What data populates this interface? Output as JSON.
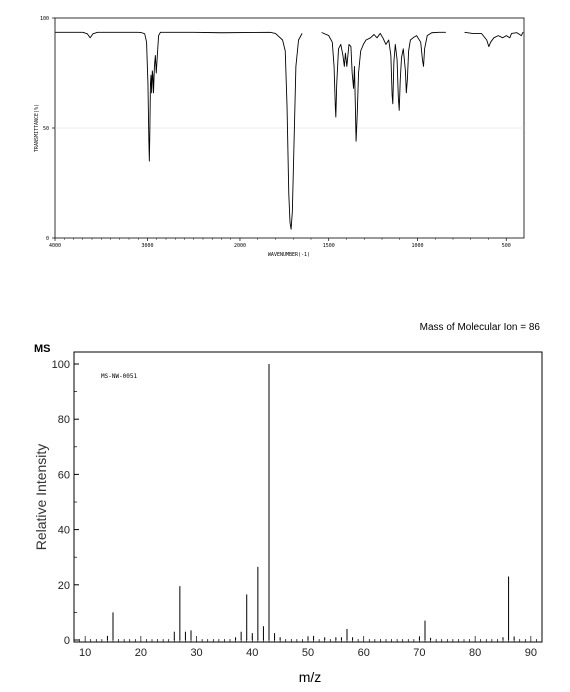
{
  "chart_data": [
    {
      "type": "line",
      "title": "",
      "xlabel": "WAVENUMBER(-1)",
      "ylabel": "TRANSMITTANCE(%)",
      "xlim": [
        4000,
        400
      ],
      "ylim": [
        0,
        100
      ],
      "x_ticks": [
        4000,
        3000,
        2000,
        1500,
        1000,
        500
      ],
      "x_tick_labels": [
        "4000",
        "3000",
        "2000",
        "1500",
        "1000",
        "500"
      ],
      "y_ticks": [
        0,
        50,
        100
      ],
      "y_tick_labels": [
        "0",
        "50",
        "100"
      ],
      "series": [
        {
          "segments": [
            [
              [
                3996,
                93.5
              ],
              [
                3700,
                93.5
              ],
              [
                3650,
                92.8
              ],
              [
                3620,
                91
              ],
              [
                3590,
                92.8
              ],
              [
                3540,
                93.5
              ],
              [
                3100,
                93.5
              ],
              [
                3060,
                93.3
              ],
              [
                3030,
                92.8
              ],
              [
                3010,
                89
              ],
              [
                2995,
                70
              ],
              [
                2985,
                44
              ],
              [
                2980,
                35
              ],
              [
                2975,
                47
              ],
              [
                2968,
                70
              ],
              [
                2962,
                74
              ],
              [
                2955,
                66
              ],
              [
                2948,
                76
              ],
              [
                2942,
                74
              ],
              [
                2935,
                66
              ],
              [
                2925,
                78
              ],
              [
                2915,
                83
              ],
              [
                2905,
                75
              ],
              [
                2895,
                82
              ],
              [
                2880,
                92
              ],
              [
                2860,
                93.5
              ],
              [
                2500,
                93.5
              ],
              [
                2200,
                93.3
              ],
              [
                1830,
                93.5
              ],
              [
                1800,
                93
              ],
              [
                1760,
                90
              ],
              [
                1745,
                85
              ],
              [
                1735,
                60
              ],
              [
                1725,
                20
              ],
              [
                1718,
                7
              ],
              [
                1712,
                4
              ],
              [
                1705,
                12
              ],
              [
                1695,
                45
              ],
              [
                1685,
                78
              ],
              [
                1670,
                90
              ],
              [
                1650,
                93
              ]
            ],
            [
              [
                1540,
                93.4
              ],
              [
                1500,
                92
              ],
              [
                1480,
                89
              ],
              [
                1470,
                78
              ],
              [
                1463,
                60
              ],
              [
                1460,
                55
              ],
              [
                1455,
                70
              ],
              [
                1445,
                86
              ],
              [
                1432,
                88
              ],
              [
                1420,
                83
              ],
              [
                1412,
                78
              ],
              [
                1406,
                84
              ],
              [
                1398,
                78
              ],
              [
                1386,
                88
              ],
              [
                1375,
                87
              ],
              [
                1368,
                75
              ],
              [
                1360,
                68
              ],
              [
                1355,
                78
              ],
              [
                1350,
                60
              ],
              [
                1346,
                44
              ],
              [
                1340,
                55
              ],
              [
                1332,
                75
              ],
              [
                1320,
                85
              ],
              [
                1305,
                88
              ],
              [
                1290,
                90
              ],
              [
                1265,
                91
              ],
              [
                1245,
                92.5
              ],
              [
                1228,
                91
              ],
              [
                1210,
                93
              ],
              [
                1195,
                91
              ],
              [
                1178,
                88
              ],
              [
                1162,
                90
              ],
              [
                1150,
                83
              ],
              [
                1143,
                65
              ],
              [
                1139,
                61
              ],
              [
                1133,
                80
              ],
              [
                1125,
                88
              ],
              [
                1115,
                81
              ],
              [
                1108,
                64
              ],
              [
                1103,
                58
              ],
              [
                1097,
                72
              ],
              [
                1090,
                82
              ],
              [
                1080,
                86
              ],
              [
                1068,
                76
              ],
              [
                1063,
                66
              ],
              [
                1057,
                72
              ],
              [
                1050,
                85
              ],
              [
                1040,
                90
              ],
              [
                1025,
                91
              ],
              [
                1005,
                92
              ],
              [
                982,
                89
              ],
              [
                972,
                81
              ],
              [
                966,
                78
              ],
              [
                960,
                86
              ],
              [
                945,
                92
              ],
              [
                920,
                93.3
              ],
              [
                880,
                93.5
              ],
              [
                840,
                93.5
              ]
            ],
            [
              [
                735,
                93.5
              ],
              [
                690,
                93
              ],
              [
                640,
                93
              ],
              [
                610,
                90
              ],
              [
                598,
                87
              ],
              [
                588,
                89
              ],
              [
                570,
                91
              ],
              [
                545,
                92
              ],
              [
                520,
                91
              ],
              [
                500,
                92
              ],
              [
                480,
                91
              ],
              [
                470,
                93
              ],
              [
                440,
                93.3
              ],
              [
                415,
                92
              ],
              [
                405,
                93.6
              ]
            ]
          ]
        }
      ]
    },
    {
      "type": "bar",
      "title": "MS",
      "annotation": "Mass of Molecular Ion = 86",
      "inset_label": "MS-NW-0051",
      "xlabel": "m/z",
      "ylabel": "Relative Intensity",
      "xlim": [
        8,
        92
      ],
      "ylim": [
        0,
        100
      ],
      "x_ticks": [
        10,
        20,
        30,
        40,
        50,
        60,
        70,
        80,
        90
      ],
      "x_tick_labels": [
        "10",
        "20",
        "30",
        "40",
        "50",
        "60",
        "70",
        "80",
        "90"
      ],
      "y_ticks": [
        0,
        20,
        40,
        60,
        80,
        100
      ],
      "y_tick_labels": [
        "0",
        "20",
        "40",
        "60",
        "80",
        "100"
      ],
      "x": [
        14,
        15,
        26,
        27,
        28,
        29,
        37,
        38,
        39,
        40,
        41,
        42,
        43,
        44,
        45,
        50,
        51,
        53,
        55,
        56,
        57,
        58,
        70,
        71,
        72,
        85,
        86,
        87
      ],
      "values": [
        1.5,
        10,
        3,
        19.5,
        3,
        3.5,
        1,
        3,
        16.5,
        2.5,
        26.5,
        5,
        100,
        2.5,
        1,
        1,
        1.5,
        1,
        1,
        1,
        4,
        1,
        1,
        7,
        0.8,
        1,
        23,
        1.3
      ]
    }
  ]
}
